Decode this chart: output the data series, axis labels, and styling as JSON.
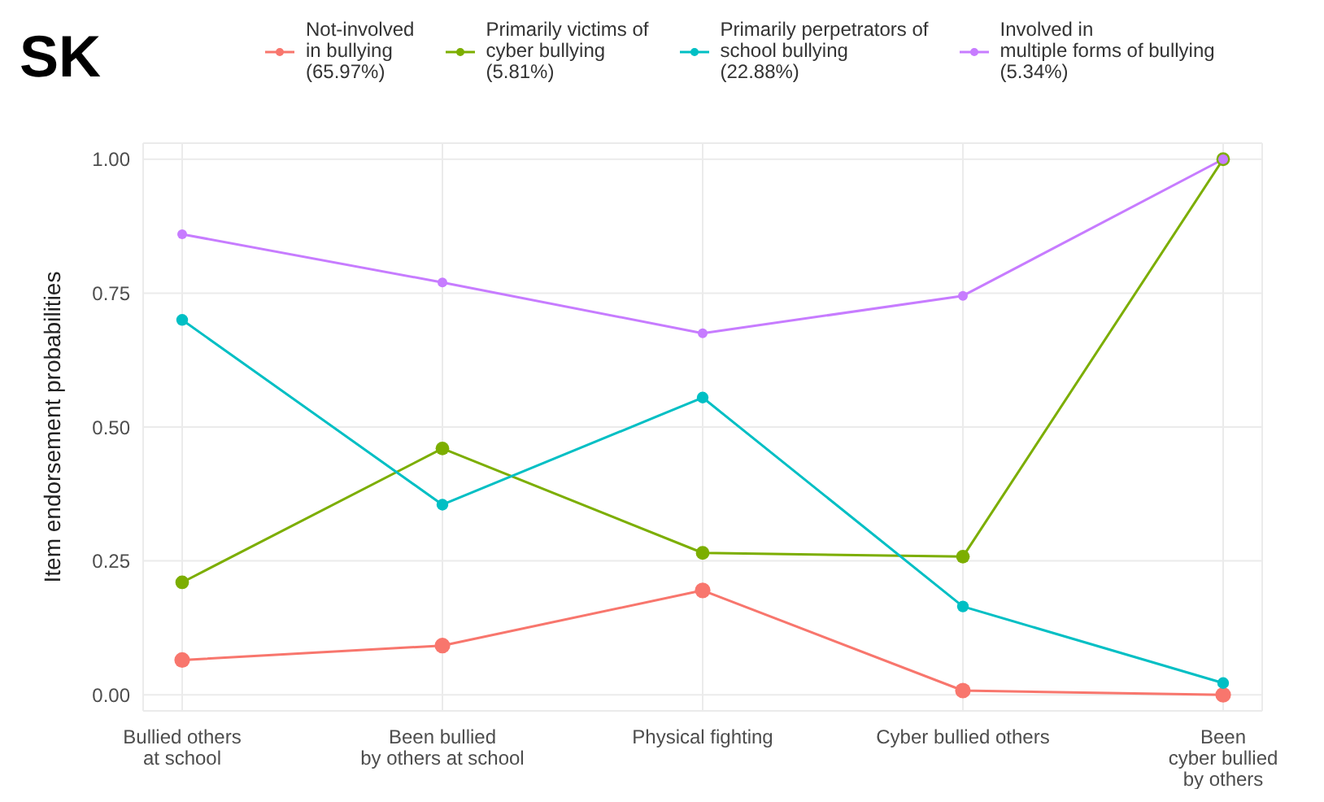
{
  "chart_data": {
    "type": "line",
    "title": "SK",
    "ylabel": "Item endorsement probabilities",
    "categories": [
      "Bullied others\nat school",
      "Been bullied\nby others at school",
      "Physical fighting",
      "Cyber bullied others",
      "Been\ncyber bullied\nby others"
    ],
    "series": [
      {
        "name": "Not-involved\nin bullying\n(65.97%)",
        "color": "#f8766d",
        "values": [
          0.065,
          0.092,
          0.195,
          0.008,
          0.0
        ]
      },
      {
        "name": "Primarily victims of\ncyber bullying\n(5.81%)",
        "color": "#7cae00",
        "values": [
          0.21,
          0.46,
          0.265,
          0.258,
          1.0
        ]
      },
      {
        "name": "Primarily perpetrators of\nschool bullying\n(22.88%)",
        "color": "#00bfc4",
        "values": [
          0.7,
          0.355,
          0.555,
          0.165,
          0.022
        ]
      },
      {
        "name": "Involved in\nmultiple forms of bullying\n(5.34%)",
        "color": "#c77cff",
        "values": [
          0.86,
          0.77,
          0.675,
          0.745,
          1.0
        ]
      }
    ],
    "ylim": [
      -0.03,
      1.03
    ],
    "yticks": [
      {
        "value": 0,
        "label": "0.00"
      },
      {
        "value": 0.25,
        "label": "0.25"
      },
      {
        "value": 0.5,
        "label": "0.50"
      },
      {
        "value": 0.75,
        "label": "0.75"
      },
      {
        "value": 1,
        "label": "1.00"
      }
    ],
    "grid": true,
    "legend": "top",
    "marker": "circle"
  }
}
